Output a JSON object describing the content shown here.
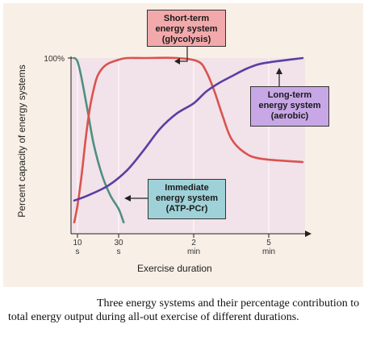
{
  "chart_data": {
    "type": "line",
    "xlabel": "Exercise duration",
    "ylabel": "Percent capacity of energy systems",
    "y_tick_label": "100%",
    "ylim": [
      0,
      100
    ],
    "x_ticks": [
      {
        "value": "10",
        "unit": "s"
      },
      {
        "value": "30",
        "unit": "s"
      },
      {
        "value": "2",
        "unit": "min"
      },
      {
        "value": "5",
        "unit": "min"
      }
    ],
    "x_tick_seconds": [
      10,
      30,
      120,
      300
    ],
    "grid": "vertical",
    "series": [
      {
        "name": "Immediate energy system (ATP-PCr)",
        "color": "#4f8f82",
        "points": [
          [
            8,
            100
          ],
          [
            10,
            98
          ],
          [
            12,
            88
          ],
          [
            15,
            68
          ],
          [
            18,
            48
          ],
          [
            22,
            30
          ],
          [
            26,
            18
          ],
          [
            30,
            10
          ],
          [
            36,
            2
          ]
        ]
      },
      {
        "name": "Short-term energy system (glycolysis)",
        "color": "#d9534f",
        "points": [
          [
            8,
            2
          ],
          [
            10,
            12
          ],
          [
            12,
            30
          ],
          [
            14,
            52
          ],
          [
            16,
            70
          ],
          [
            18,
            82
          ],
          [
            20,
            90
          ],
          [
            24,
            96
          ],
          [
            30,
            99
          ],
          [
            40,
            100
          ],
          [
            60,
            100
          ],
          [
            100,
            100
          ],
          [
            130,
            98
          ],
          [
            150,
            92
          ],
          [
            170,
            80
          ],
          [
            190,
            65
          ],
          [
            210,
            52
          ],
          [
            240,
            44
          ],
          [
            280,
            40
          ],
          [
            330,
            38
          ]
        ]
      },
      {
        "name": "Long-term energy system (aerobic)",
        "color": "#5a3fa3",
        "points": [
          [
            8,
            15
          ],
          [
            15,
            18
          ],
          [
            25,
            24
          ],
          [
            40,
            33
          ],
          [
            60,
            45
          ],
          [
            80,
            58
          ],
          [
            100,
            67
          ],
          [
            120,
            73
          ],
          [
            150,
            80
          ],
          [
            180,
            85
          ],
          [
            210,
            89
          ],
          [
            250,
            94
          ],
          [
            290,
            97
          ],
          [
            330,
            100
          ]
        ]
      }
    ],
    "callouts": {
      "short": [
        "Short-term",
        "energy system",
        "(glycolysis)"
      ],
      "long": [
        "Long-term",
        "energy system",
        "(aerobic)"
      ],
      "immediate": [
        "Immediate",
        "energy system",
        "(ATP-PCr)"
      ]
    }
  },
  "caption": "Three energy systems and their percentage contribution to total energy output during all-out exercise of different durations."
}
